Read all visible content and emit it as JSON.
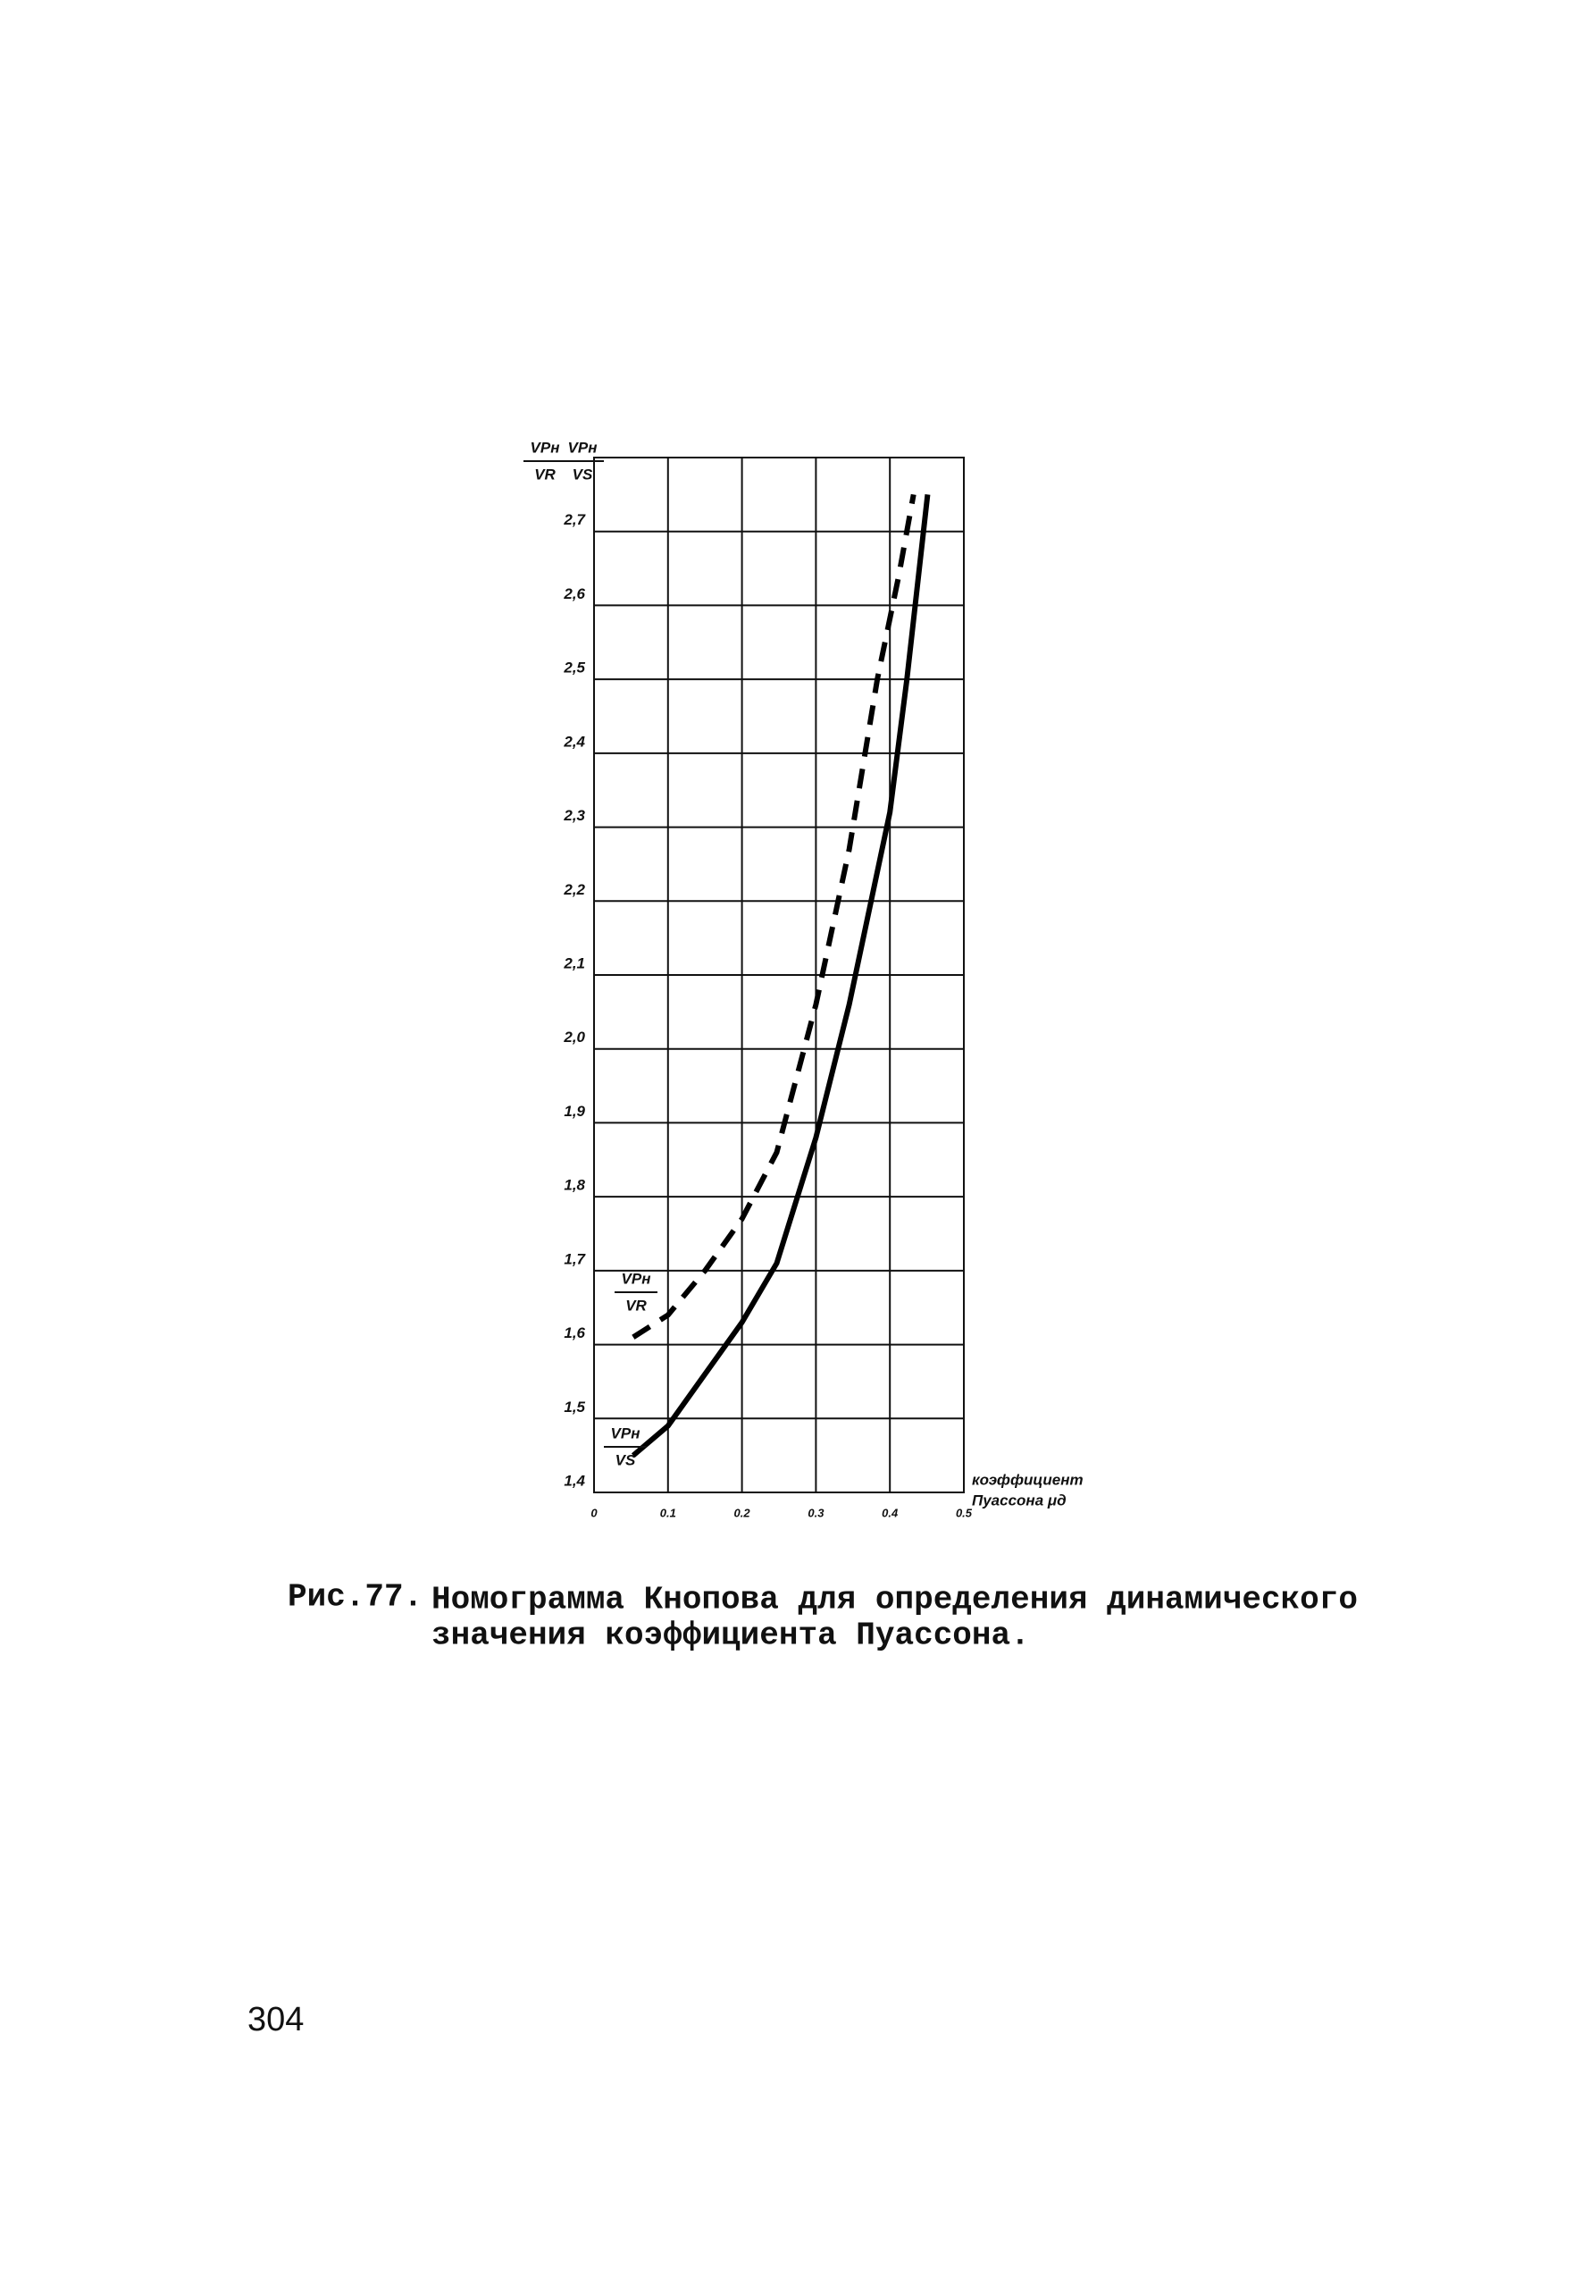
{
  "chart_data": {
    "type": "line",
    "y_label": [
      {
        "numerator": "VPн",
        "denominator": "VR"
      },
      {
        "numerator": "VPн",
        "denominator": "VS"
      }
    ],
    "x_label": [
      "коэффициент",
      "Пуассона μд"
    ],
    "xlim": [
      0,
      0.5
    ],
    "xticks": [
      0,
      0.1,
      0.2,
      0.3,
      0.4,
      0.5
    ],
    "ylim": [
      1.4,
      2.8
    ],
    "yticks": [
      {
        "value": 1.4,
        "label": "1,4"
      },
      {
        "value": 1.5,
        "label": "1,5"
      },
      {
        "value": 1.6,
        "label": "1,6"
      },
      {
        "value": 1.7,
        "label": "1,7"
      },
      {
        "value": 1.8,
        "label": "1,8"
      },
      {
        "value": 1.9,
        "label": "1,9"
      },
      {
        "value": 2.0,
        "label": "2,0"
      },
      {
        "value": 2.1,
        "label": "2,1"
      },
      {
        "value": 2.2,
        "label": "2,2"
      },
      {
        "value": 2.3,
        "label": "2,3"
      },
      {
        "value": 2.4,
        "label": "2,4"
      },
      {
        "value": 2.5,
        "label": "2,5"
      },
      {
        "value": 2.6,
        "label": "2,6"
      },
      {
        "value": 2.7,
        "label": "2,7"
      }
    ],
    "grid": true,
    "series": [
      {
        "numerator": "VPн",
        "denominator": "VS",
        "color": "#000000",
        "dashed": false,
        "x": [
          0.053,
          0.1,
          0.2,
          0.247,
          0.3,
          0.345,
          0.4,
          0.423,
          0.451
        ],
        "values": [
          1.45,
          1.49,
          1.63,
          1.71,
          1.88,
          2.06,
          2.32,
          2.5,
          2.75
        ]
      },
      {
        "numerator": "VPн",
        "denominator": "VR",
        "color": "#000000",
        "dashed": true,
        "x": [
          0.053,
          0.1,
          0.15,
          0.2,
          0.247,
          0.3,
          0.345,
          0.383,
          0.412,
          0.432
        ],
        "values": [
          1.61,
          1.64,
          1.7,
          1.77,
          1.86,
          2.06,
          2.27,
          2.5,
          2.64,
          2.75
        ]
      }
    ]
  },
  "caption": {
    "label": "Рис.77.",
    "lines": [
      "Номограмма Кнопова для определения динамического",
      "значения коэффициента Пуассона."
    ]
  },
  "page_number": "304"
}
